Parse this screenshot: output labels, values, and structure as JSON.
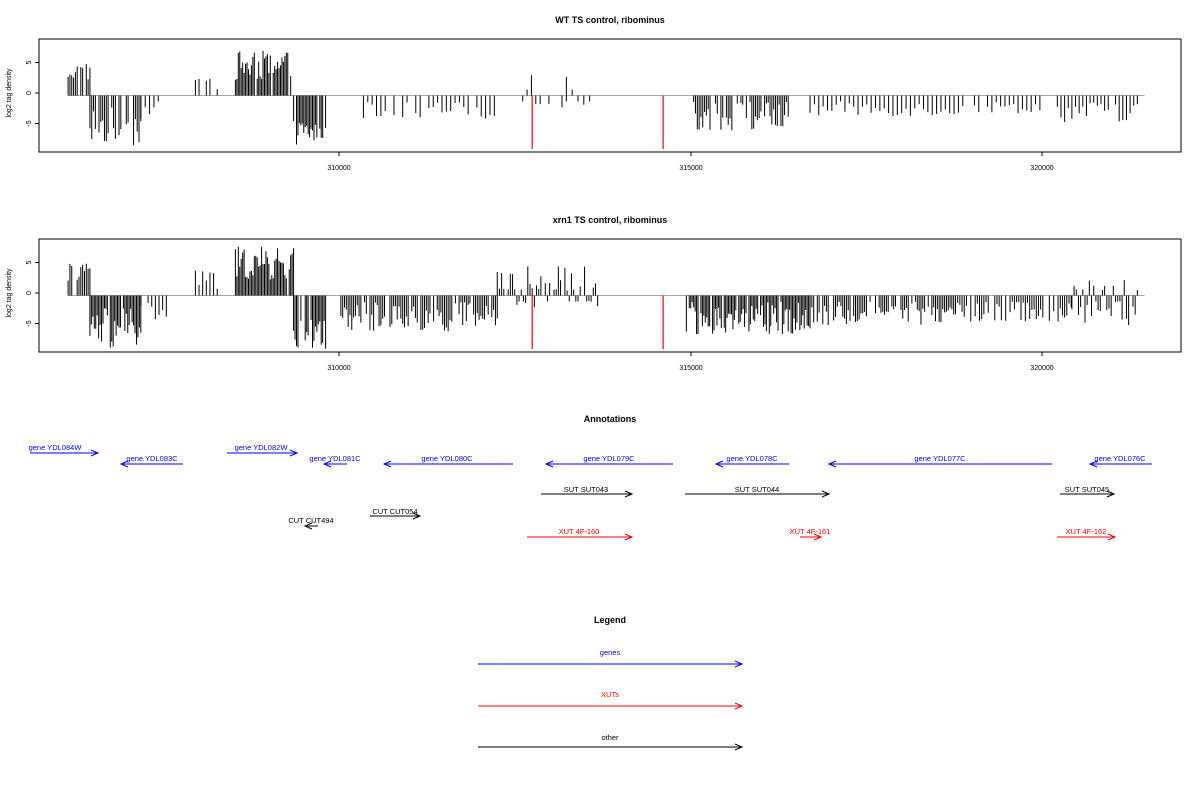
{
  "chart_data": [
    {
      "type": "bar",
      "title": "WT TS control, ribominus",
      "ylabel": "log2 tag density",
      "xlim": [
        306200,
        321900
      ],
      "ylim": [
        -9.5,
        9.5
      ],
      "x_ticks": [
        310000,
        315000,
        320000
      ],
      "y_ticks": [
        -5,
        0,
        5
      ],
      "baseline_range": [
        306600,
        321400
      ],
      "blocks": [
        {
          "from": 306600,
          "to": 306900,
          "min": 2.5,
          "max": 5.5,
          "step": 25
        },
        {
          "from": 306900,
          "to": 307600,
          "min": -8.5,
          "max": -2,
          "step": 25
        },
        {
          "from": 307600,
          "to": 307950,
          "min": -4,
          "max": -1,
          "step": 60
        },
        {
          "from": 308350,
          "to": 308650,
          "min": 1,
          "max": 3.5,
          "step": 50
        },
        {
          "from": 308900,
          "to": 309700,
          "min": 2.5,
          "max": 7.5,
          "step": 20
        },
        {
          "from": 309700,
          "to": 310150,
          "min": -8.5,
          "max": -4,
          "step": 20
        },
        {
          "from": 310600,
          "to": 312500,
          "min": -4,
          "max": -1,
          "step": 60
        },
        {
          "from": 312850,
          "to": 313450,
          "min": -2,
          "max": 3.5,
          "step": 60
        },
        {
          "from": 313450,
          "to": 313800,
          "min": -2,
          "max": 3,
          "step": 80
        },
        {
          "from": 315200,
          "to": 316500,
          "min": -6,
          "max": -1,
          "step": 25
        },
        {
          "from": 316800,
          "to": 318900,
          "min": -3.5,
          "max": -1,
          "step": 60
        },
        {
          "from": 319000,
          "to": 320000,
          "min": -3,
          "max": -1,
          "step": 60
        },
        {
          "from": 320200,
          "to": 321300,
          "min": -4.5,
          "max": -1,
          "step": 50
        }
      ],
      "highlight": [
        {
          "x": 312980,
          "y": -9,
          "color": "#ff0000"
        },
        {
          "x": 314780,
          "y": -9,
          "color": "#ff0000"
        }
      ]
    },
    {
      "type": "bar",
      "title": "xrn1 TS control, ribominus",
      "ylabel": "log2 tag density",
      "xlim": [
        306200,
        321900
      ],
      "ylim": [
        -9.5,
        9.5
      ],
      "x_ticks": [
        310000,
        315000,
        320000
      ],
      "y_ticks": [
        -5,
        0,
        5
      ],
      "baseline_range": [
        306600,
        321400
      ],
      "blocks": [
        {
          "from": 306600,
          "to": 306900,
          "min": 2.5,
          "max": 5.5,
          "step": 25
        },
        {
          "from": 306900,
          "to": 307600,
          "min": -9,
          "max": -2,
          "step": 20
        },
        {
          "from": 307600,
          "to": 307950,
          "min": -5,
          "max": -1,
          "step": 50
        },
        {
          "from": 308350,
          "to": 308650,
          "min": 1,
          "max": 4.5,
          "step": 50
        },
        {
          "from": 308900,
          "to": 309700,
          "min": 2.5,
          "max": 8.2,
          "step": 20
        },
        {
          "from": 309700,
          "to": 310150,
          "min": -9,
          "max": -4,
          "step": 20
        },
        {
          "from": 310350,
          "to": 312500,
          "min": -6,
          "max": -1,
          "step": 25
        },
        {
          "from": 312500,
          "to": 313900,
          "min": -2,
          "max": 5,
          "step": 30
        },
        {
          "from": 315100,
          "to": 316800,
          "min": -6.5,
          "max": -1,
          "step": 20
        },
        {
          "from": 316800,
          "to": 318800,
          "min": -5,
          "max": -1,
          "step": 25
        },
        {
          "from": 318800,
          "to": 320400,
          "min": -4.5,
          "max": -1,
          "step": 30
        },
        {
          "from": 320400,
          "to": 321300,
          "min": -5,
          "max": 3,
          "step": 30
        }
      ],
      "highlight": [
        {
          "x": 312980,
          "y": -9,
          "color": "#ff0000"
        },
        {
          "x": 314780,
          "y": -9,
          "color": "#ff0000"
        }
      ]
    }
  ],
  "panels": [
    {
      "title": "WT TS control, ribominus",
      "ylabel": "log2 tag density",
      "x_ticks": [
        "310000",
        "315000",
        "320000"
      ],
      "y_ticks": [
        "-5",
        "0",
        "5"
      ]
    },
    {
      "title": "xrn1 TS control, ribominus",
      "ylabel": "log2 tag density",
      "x_ticks": [
        "310000",
        "315000",
        "320000"
      ],
      "y_ticks": [
        "-5",
        "0",
        "5"
      ]
    }
  ],
  "annotations": {
    "title": "Annotations",
    "items": [
      {
        "label": "gene YDL084W",
        "class": "genes",
        "color": "#0000ff",
        "dir": "right"
      },
      {
        "label": "gene YDL083C",
        "class": "genes",
        "color": "#0000ff",
        "dir": "left"
      },
      {
        "label": "gene YDL082W",
        "class": "genes",
        "color": "#0000ff",
        "dir": "right"
      },
      {
        "label": "gene YDL081C",
        "class": "genes",
        "color": "#0000ff",
        "dir": "left"
      },
      {
        "label": "gene YDL080C",
        "class": "genes",
        "color": "#0000ff",
        "dir": "left"
      },
      {
        "label": "gene YDL079C",
        "class": "genes",
        "color": "#0000ff",
        "dir": "left"
      },
      {
        "label": "gene YDL078C",
        "class": "genes",
        "color": "#0000ff",
        "dir": "left"
      },
      {
        "label": "gene YDL077C",
        "class": "genes",
        "color": "#0000ff",
        "dir": "left"
      },
      {
        "label": "gene YDL076C",
        "class": "genes",
        "color": "#0000ff",
        "dir": "left"
      },
      {
        "label": "SUT SUT043",
        "class": "other",
        "color": "#000000",
        "dir": "right"
      },
      {
        "label": "SUT SUT044",
        "class": "other",
        "color": "#000000",
        "dir": "right"
      },
      {
        "label": "SUT SUT045",
        "class": "other",
        "color": "#000000",
        "dir": "right"
      },
      {
        "label": "CUT CUT494",
        "class": "other",
        "color": "#000000",
        "dir": "left"
      },
      {
        "label": "CUT CUT054",
        "class": "other",
        "color": "#000000",
        "dir": "right"
      },
      {
        "label": "XUT 4F-160",
        "class": "XUTs",
        "color": "#ff0000",
        "dir": "right"
      },
      {
        "label": "XUT 4F-161",
        "class": "XUTs",
        "color": "#ff0000",
        "dir": "right"
      },
      {
        "label": "XUT 4F-162",
        "class": "XUTs",
        "color": "#ff0000",
        "dir": "right"
      }
    ]
  },
  "legend": {
    "title": "Legend",
    "items": [
      {
        "label": "genes",
        "color": "#0000ff"
      },
      {
        "label": "XUTs",
        "color": "#ff0000"
      },
      {
        "label": "other",
        "color": "#000000"
      }
    ]
  }
}
